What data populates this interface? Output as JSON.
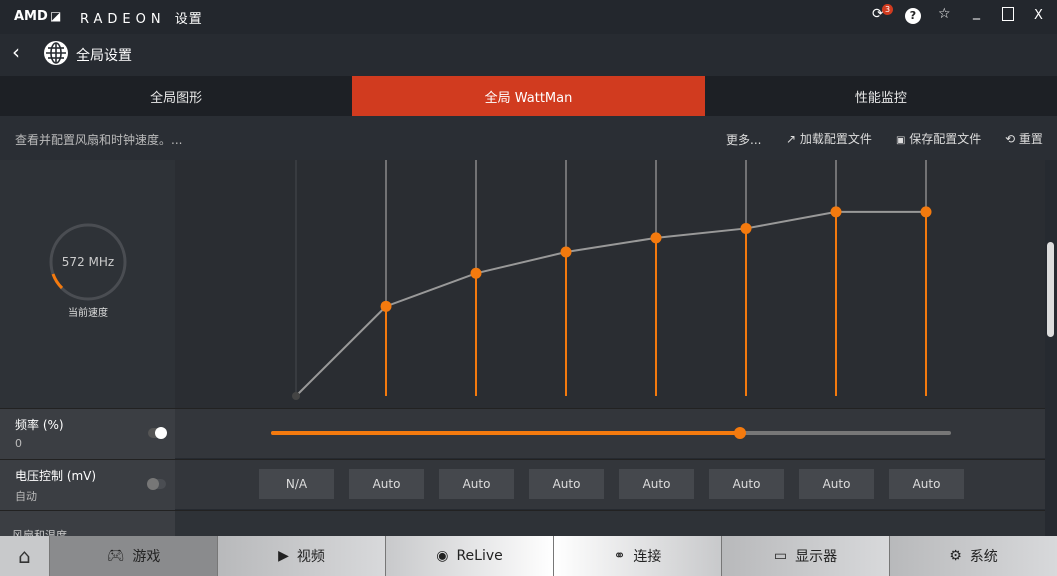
{
  "titlebar": {
    "logo": "AMD",
    "brand": "RADEON",
    "brand_suffix": "设置",
    "notification_count": "3",
    "help": "?",
    "star": "☆",
    "minimize": "_",
    "maximize": "☐",
    "close": "X"
  },
  "header": {
    "back": "‹",
    "title": "全局设置"
  },
  "tabs": [
    {
      "label": "全局图形"
    },
    {
      "label": "全局 WattMan",
      "active": true
    },
    {
      "label": "性能监控"
    }
  ],
  "subbar": {
    "description": "查看并配置风扇和时钟速度。...",
    "more": "更多...",
    "load_profile": "加载配置文件",
    "save_profile": "保存配置文件",
    "reset": "重置"
  },
  "gauge": {
    "value": "572 MHz",
    "label": "当前速度"
  },
  "curve": {
    "state_levels": [
      0,
      0.38,
      0.52,
      0.61,
      0.67,
      0.71,
      0.78,
      0.78
    ],
    "accent": "#f47a0e"
  },
  "frequency": {
    "label": "频率 (%)",
    "value": "0",
    "slider_fraction": 0.69,
    "toggle_on": true
  },
  "voltage": {
    "label": "电压控制 (mV)",
    "value": "自动",
    "toggle_on": false,
    "states": [
      "N/A",
      "Auto",
      "Auto",
      "Auto",
      "Auto",
      "Auto",
      "Auto",
      "Auto"
    ]
  },
  "fan_section": {
    "label": "风扇和温度"
  },
  "bottom_nav": [
    {
      "icon": "home-icon",
      "label": ""
    },
    {
      "icon": "gamepad-icon",
      "label": "游戏"
    },
    {
      "icon": "play-icon",
      "label": "视频"
    },
    {
      "icon": "relive-icon",
      "label": "ReLive"
    },
    {
      "icon": "connect-icon",
      "label": "连接"
    },
    {
      "icon": "monitor-icon",
      "label": "显示器"
    },
    {
      "icon": "gear-icon",
      "label": "系统"
    }
  ]
}
